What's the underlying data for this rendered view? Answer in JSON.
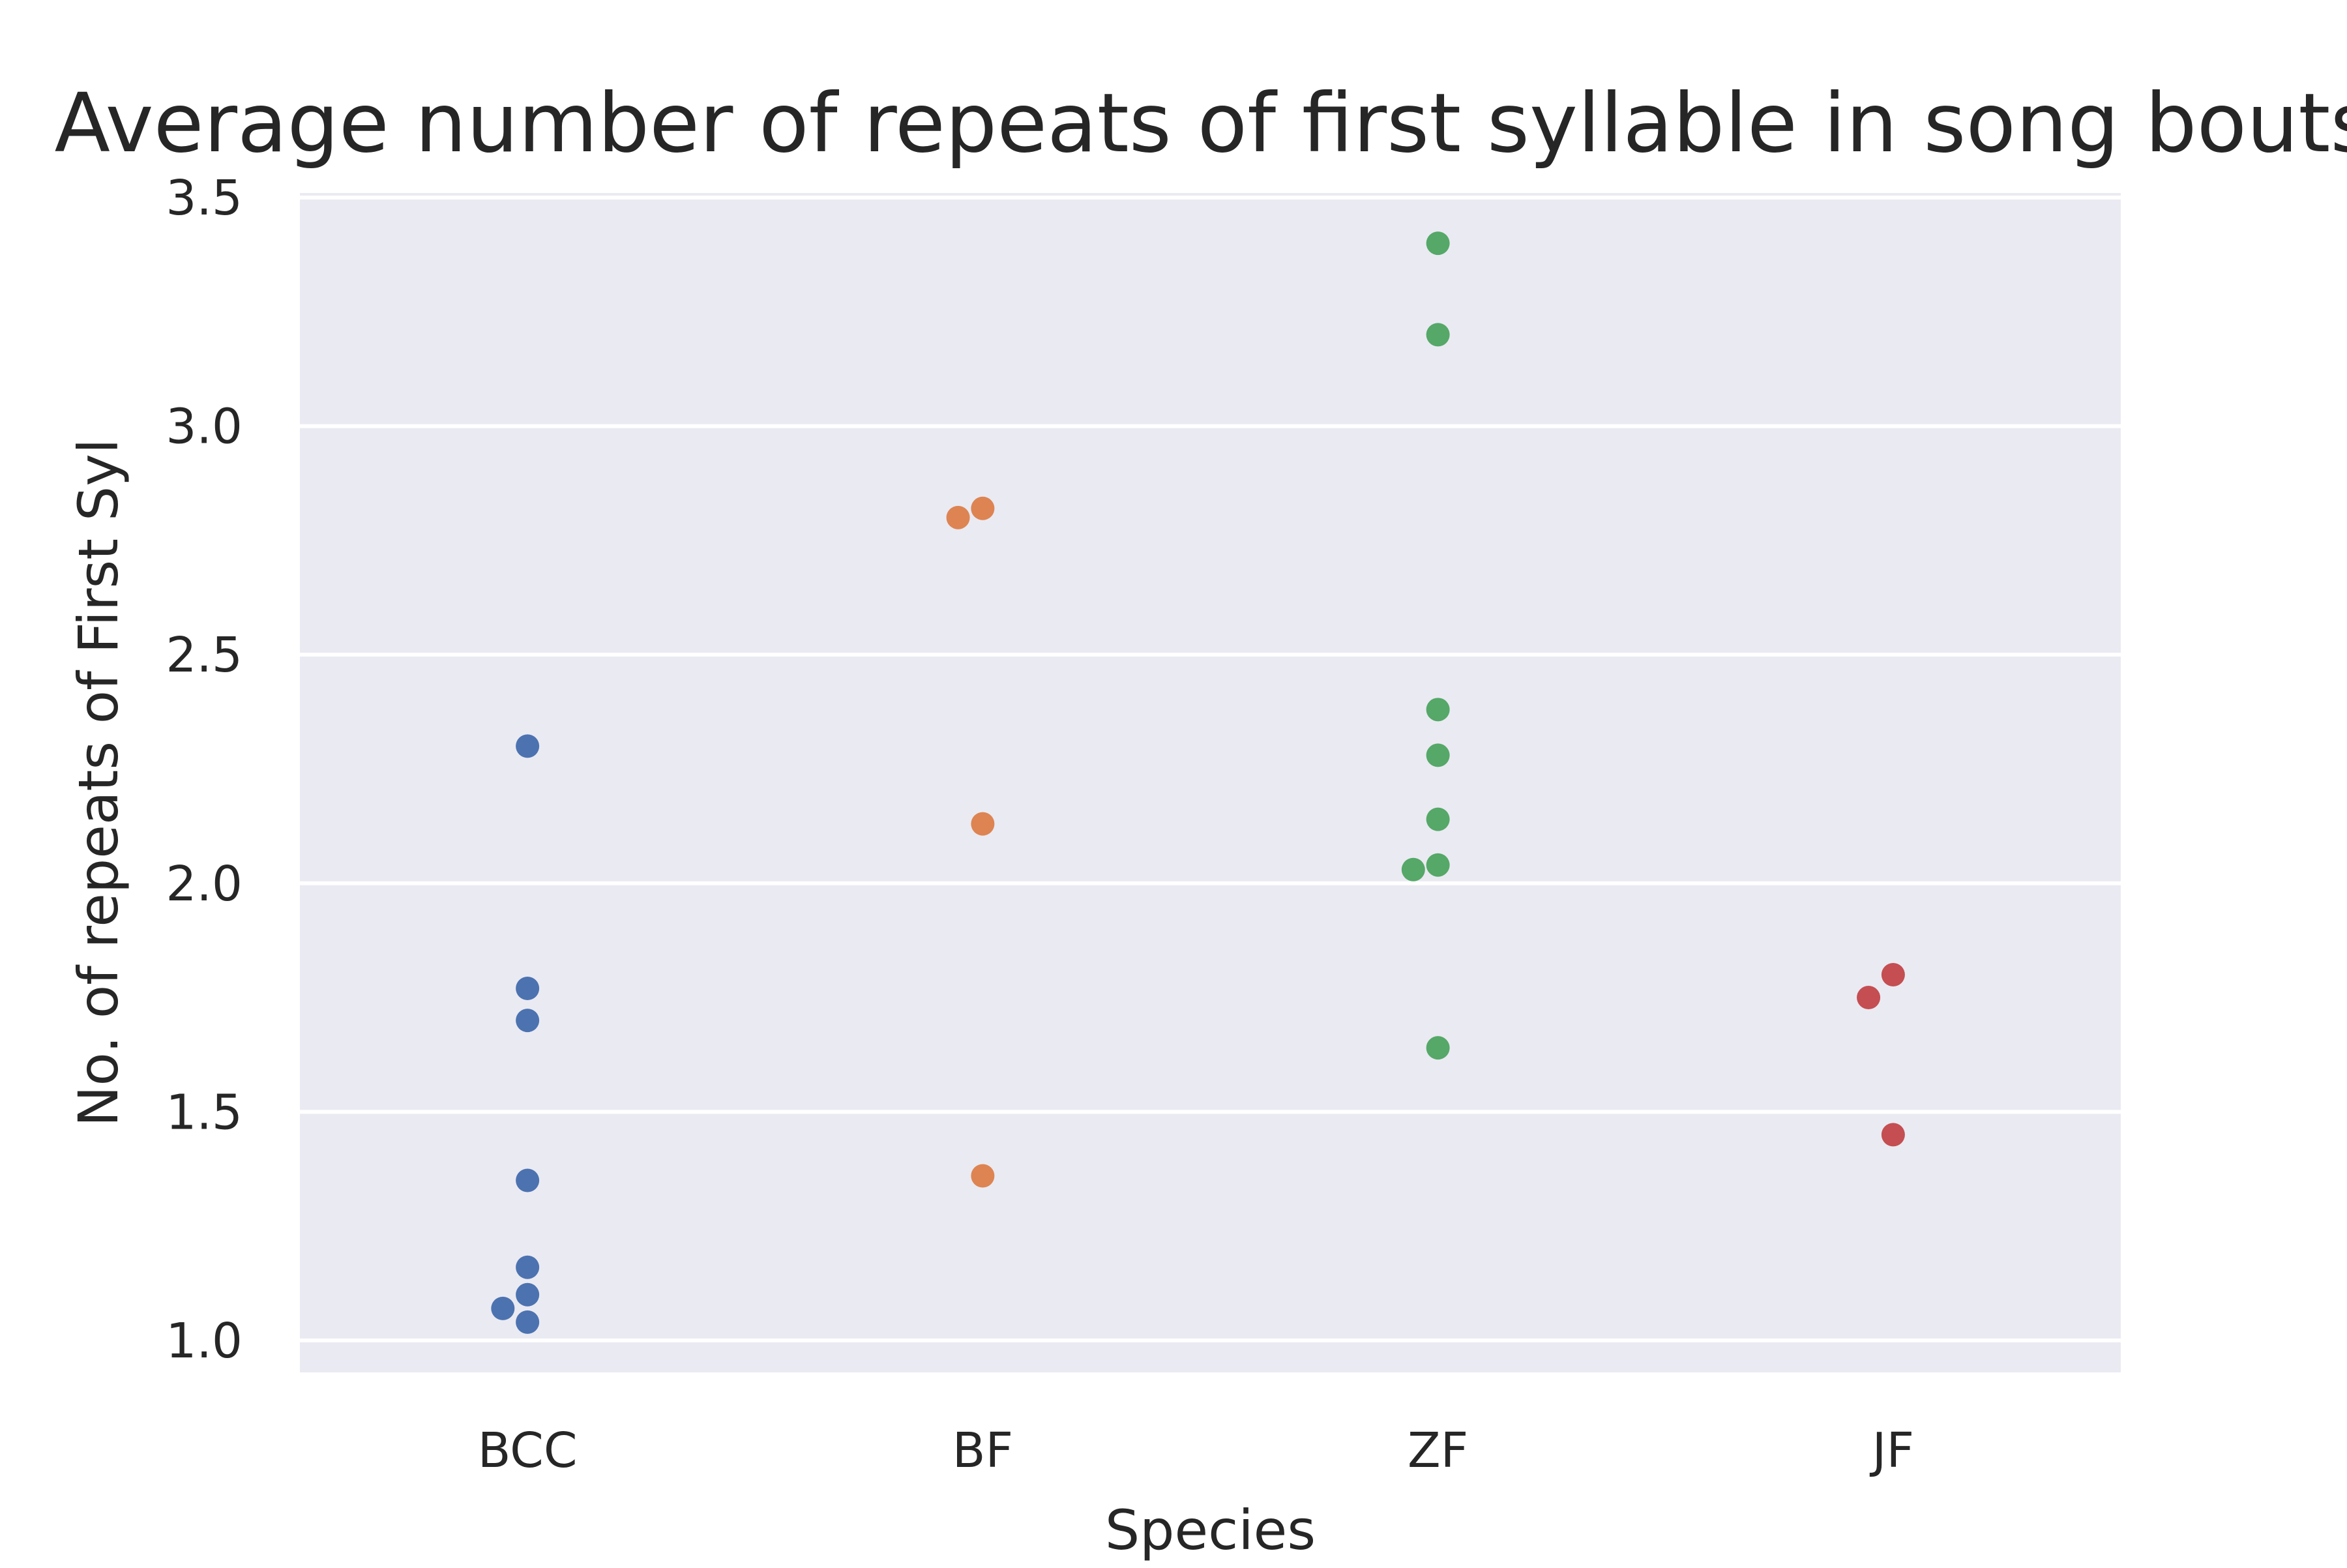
{
  "chart_data": {
    "type": "scatter",
    "title": "Average number of repeats of first syllable in song bouts",
    "xlabel": "Species",
    "ylabel": "No. of repeats of First Syl",
    "categories": [
      "BCC",
      "BF",
      "ZF",
      "JF"
    ],
    "ylim": [
      0.93,
      3.51
    ],
    "yticks": [
      1.0,
      1.5,
      2.0,
      2.5,
      3.0,
      3.5
    ],
    "ytick_labels": [
      "1.0",
      "1.5",
      "2.0",
      "2.5",
      "3.0",
      "3.5"
    ],
    "grid": true,
    "legend": "none",
    "series": [
      {
        "category": "BCC",
        "color": "#4c72b0",
        "values": [
          2.3,
          1.77,
          1.7,
          1.35,
          1.16,
          1.1,
          1.07,
          1.04
        ]
      },
      {
        "category": "BF",
        "color": "#dd8452",
        "values": [
          2.82,
          2.8,
          2.13,
          1.36
        ]
      },
      {
        "category": "ZF",
        "color": "#55a868",
        "values": [
          3.4,
          3.2,
          2.38,
          2.28,
          2.14,
          2.04,
          2.03,
          1.64
        ]
      },
      {
        "category": "JF",
        "color": "#c44e52",
        "values": [
          1.8,
          1.75,
          1.45
        ]
      }
    ]
  },
  "colors": {
    "plot_background": "#eaeaf2",
    "grid": "#ffffff",
    "text": "#262626"
  }
}
